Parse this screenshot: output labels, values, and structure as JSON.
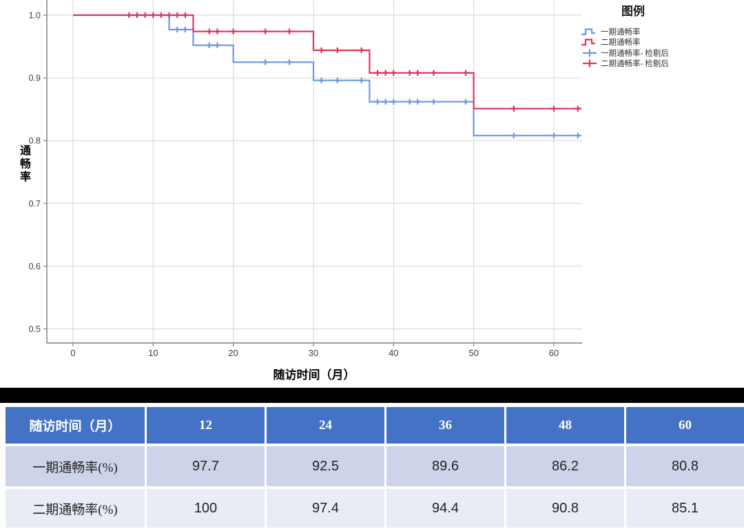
{
  "chart": {
    "ylabel": "通畅率",
    "xlabel": "随访时间（月）",
    "legend": {
      "title": "图例",
      "items": [
        {
          "label": "一期通畅率",
          "color": "#6B97E3",
          "symbol": "step"
        },
        {
          "label": "二期通畅率",
          "color": "#E1315B",
          "symbol": "step"
        },
        {
          "label": "一期通畅率- 检剔后",
          "color": "#6B97E3",
          "symbol": "plus"
        },
        {
          "label": "二期通畅率- 检剔后",
          "color": "#E1315B",
          "symbol": "plus"
        }
      ]
    }
  },
  "chart_data": {
    "type": "line",
    "subtype": "kaplan-meier-step",
    "title": "",
    "xlabel": "随访时间（月）",
    "ylabel": "通畅率",
    "xlim": [
      -3.3,
      63.5
    ],
    "ylim": [
      0.477,
      1.024
    ],
    "xticks": [
      0,
      10,
      20,
      30,
      40,
      50,
      60
    ],
    "yticks": [
      1.0,
      0.9,
      0.8,
      0.7,
      0.6,
      0.5
    ],
    "grid": true,
    "legend_position": "top-right-outside",
    "colors": {
      "gridline": "#d5d5d5",
      "axis": "#7b7b7b",
      "tick_text": "#3d3d3d"
    },
    "series": [
      {
        "name": "一期通畅率",
        "color": "#6B97E3",
        "points": [
          [
            0,
            1.0
          ],
          [
            12,
            1.0
          ],
          [
            12,
            0.977
          ],
          [
            15,
            0.977
          ],
          [
            15,
            0.952
          ],
          [
            20,
            0.952
          ],
          [
            20,
            0.925
          ],
          [
            30,
            0.925
          ],
          [
            30,
            0.896
          ],
          [
            37,
            0.896
          ],
          [
            37,
            0.862
          ],
          [
            50,
            0.862
          ],
          [
            50,
            0.808
          ],
          [
            63.3,
            0.808
          ]
        ],
        "censored": [
          [
            13,
            0.977
          ],
          [
            14,
            0.977
          ],
          [
            17,
            0.952
          ],
          [
            18,
            0.952
          ],
          [
            24,
            0.925
          ],
          [
            27,
            0.925
          ],
          [
            31,
            0.896
          ],
          [
            33,
            0.896
          ],
          [
            36,
            0.896
          ],
          [
            38,
            0.862
          ],
          [
            39,
            0.862
          ],
          [
            40,
            0.862
          ],
          [
            42,
            0.862
          ],
          [
            43,
            0.862
          ],
          [
            45,
            0.862
          ],
          [
            49,
            0.862
          ],
          [
            55,
            0.808
          ],
          [
            60,
            0.808
          ],
          [
            63,
            0.808
          ]
        ]
      },
      {
        "name": "二期通畅率",
        "color": "#E1315B",
        "points": [
          [
            0,
            1.0
          ],
          [
            15,
            1.0
          ],
          [
            15,
            0.974
          ],
          [
            30,
            0.974
          ],
          [
            30,
            0.944
          ],
          [
            37,
            0.944
          ],
          [
            37,
            0.908
          ],
          [
            50,
            0.908
          ],
          [
            50,
            0.851
          ],
          [
            63.3,
            0.851
          ]
        ],
        "censored": [
          [
            7,
            1.0
          ],
          [
            8,
            1.0
          ],
          [
            9,
            1.0
          ],
          [
            10,
            1.0
          ],
          [
            11,
            1.0
          ],
          [
            12,
            1.0
          ],
          [
            13,
            1.0
          ],
          [
            14,
            1.0
          ],
          [
            17,
            0.974
          ],
          [
            18,
            0.974
          ],
          [
            20,
            0.974
          ],
          [
            24,
            0.974
          ],
          [
            27,
            0.974
          ],
          [
            31,
            0.944
          ],
          [
            33,
            0.944
          ],
          [
            36,
            0.944
          ],
          [
            38,
            0.908
          ],
          [
            39,
            0.908
          ],
          [
            40,
            0.908
          ],
          [
            42,
            0.908
          ],
          [
            43,
            0.908
          ],
          [
            45,
            0.908
          ],
          [
            49,
            0.908
          ],
          [
            55,
            0.851
          ],
          [
            60,
            0.851
          ],
          [
            63,
            0.851
          ]
        ]
      }
    ]
  },
  "table": {
    "header": [
      "随访时间（月）",
      "12",
      "24",
      "36",
      "48",
      "60"
    ],
    "rows": [
      {
        "label": "一期通畅率(%)",
        "values": [
          "97.7",
          "92.5",
          "89.6",
          "86.2",
          "80.8"
        ]
      },
      {
        "label": "二期通畅率(%)",
        "values": [
          "100",
          "97.4",
          "94.4",
          "90.8",
          "85.1"
        ]
      }
    ],
    "colors": {
      "header_bg": "#4472C4",
      "header_text": "#FFFFFF",
      "row1_bg": "#CDD4EA",
      "row2_bg": "#E9EBF5",
      "body_text": "#222222"
    }
  }
}
